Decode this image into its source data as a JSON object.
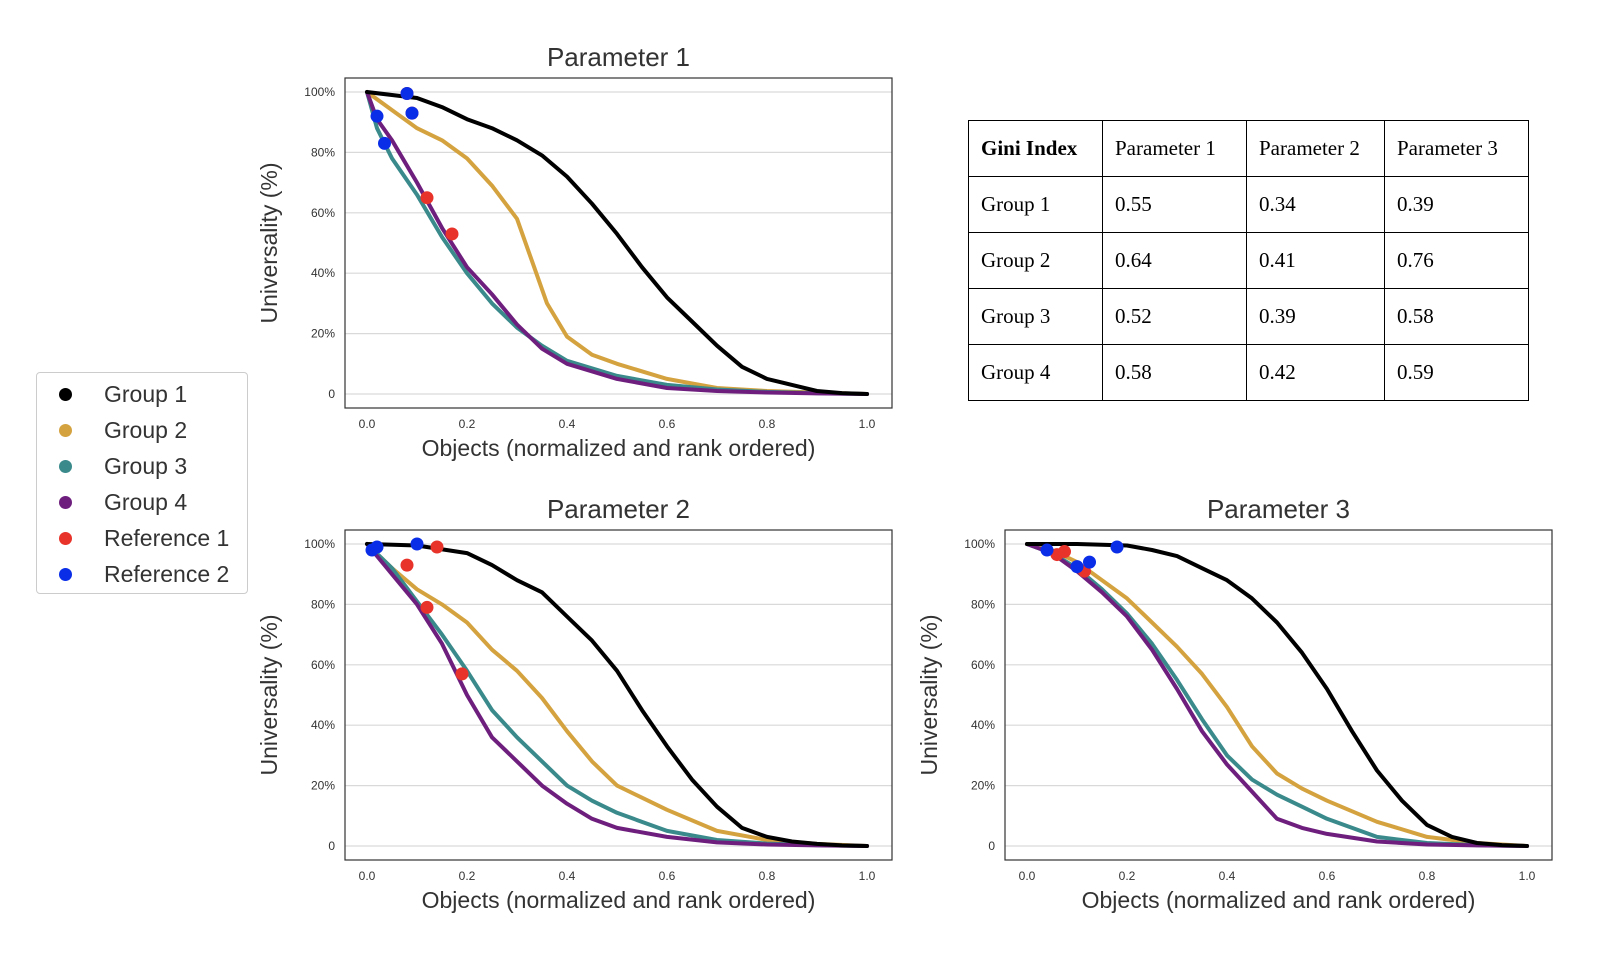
{
  "series_colors": {
    "Group 1": "#000000",
    "Group 2": "#d4a340",
    "Group 3": "#3a8a8c",
    "Group 4": "#6e1f7e",
    "Reference 1": "#e8332a",
    "Reference 2": "#0a2ee8"
  },
  "legend": {
    "items": [
      {
        "label": "Group 1",
        "color": "#000000"
      },
      {
        "label": "Group 2",
        "color": "#d4a340"
      },
      {
        "label": "Group 3",
        "color": "#3a8a8c"
      },
      {
        "label": "Group 4",
        "color": "#6e1f7e"
      },
      {
        "label": "Reference 1",
        "color": "#e8332a"
      },
      {
        "label": "Reference 2",
        "color": "#0a2ee8"
      }
    ]
  },
  "gini_table": {
    "header": [
      "Gini Index",
      "Parameter 1",
      "Parameter 2",
      "Parameter 3"
    ],
    "rows": [
      [
        "Group 1",
        "0.55",
        "0.34",
        "0.39"
      ],
      [
        "Group 2",
        "0.64",
        "0.41",
        "0.76"
      ],
      [
        "Group 3",
        "0.52",
        "0.39",
        "0.58"
      ],
      [
        "Group 4",
        "0.58",
        "0.42",
        "0.59"
      ]
    ]
  },
  "chart_data": [
    {
      "type": "line",
      "title": "Parameter 1",
      "xlabel": "Objects (normalized and rank ordered)",
      "ylabel": "Universality (%)",
      "xlim": [
        0,
        1
      ],
      "ylim": [
        0,
        100
      ],
      "xticks": [
        "0.0",
        "0.2",
        "0.4",
        "0.6",
        "0.8",
        "1.0"
      ],
      "yticks": [
        "0",
        "20%",
        "40%",
        "60%",
        "80%",
        "100%"
      ],
      "grid": "horizontal",
      "series": [
        {
          "name": "Group 1",
          "x": [
            0,
            0.05,
            0.1,
            0.15,
            0.2,
            0.25,
            0.3,
            0.35,
            0.4,
            0.45,
            0.5,
            0.55,
            0.6,
            0.65,
            0.7,
            0.75,
            0.8,
            0.85,
            0.9,
            0.95,
            1.0
          ],
          "y": [
            100,
            99,
            98,
            95,
            91,
            88,
            84,
            79,
            72,
            63,
            53,
            42,
            32,
            24,
            16,
            9,
            5,
            3,
            1,
            0.3,
            0
          ]
        },
        {
          "name": "Group 2",
          "x": [
            0,
            0.05,
            0.1,
            0.15,
            0.2,
            0.25,
            0.3,
            0.33,
            0.36,
            0.4,
            0.45,
            0.5,
            0.6,
            0.7,
            0.8,
            0.9,
            1.0
          ],
          "y": [
            100,
            94,
            88,
            84,
            78,
            69,
            58,
            44,
            30,
            19,
            13,
            10,
            5,
            2,
            1,
            0.5,
            0
          ]
        },
        {
          "name": "Group 3",
          "x": [
            0,
            0.02,
            0.05,
            0.1,
            0.15,
            0.2,
            0.25,
            0.3,
            0.35,
            0.4,
            0.5,
            0.6,
            0.7,
            0.8,
            0.9,
            1.0
          ],
          "y": [
            100,
            88,
            78,
            66,
            52,
            40,
            30,
            22,
            16,
            11,
            6,
            3,
            1.5,
            0.7,
            0.3,
            0
          ]
        },
        {
          "name": "Group 4",
          "x": [
            0,
            0.02,
            0.05,
            0.1,
            0.15,
            0.2,
            0.25,
            0.3,
            0.35,
            0.4,
            0.5,
            0.6,
            0.7,
            0.8,
            0.9,
            1.0
          ],
          "y": [
            100,
            91,
            84,
            70,
            55,
            42,
            33,
            23,
            15,
            10,
            5,
            2,
            1,
            0.5,
            0.2,
            0
          ]
        },
        {
          "name": "Reference 1",
          "mode": "markers",
          "x": [
            0.08,
            0.09,
            0.12,
            0.17
          ],
          "y": [
            99.5,
            93,
            65,
            53
          ]
        },
        {
          "name": "Reference 2",
          "mode": "markers",
          "x": [
            0.08,
            0.09,
            0.02,
            0.035
          ],
          "y": [
            99.5,
            93,
            92,
            83
          ]
        }
      ]
    },
    {
      "type": "line",
      "title": "Parameter 2",
      "xlabel": "Objects (normalized and rank ordered)",
      "ylabel": "Universality (%)",
      "xlim": [
        0,
        1
      ],
      "ylim": [
        0,
        100
      ],
      "xticks": [
        "0.0",
        "0.2",
        "0.4",
        "0.6",
        "0.8",
        "1.0"
      ],
      "yticks": [
        "0",
        "20%",
        "40%",
        "60%",
        "80%",
        "100%"
      ],
      "grid": "horizontal",
      "series": [
        {
          "name": "Group 1",
          "x": [
            0,
            0.1,
            0.2,
            0.25,
            0.3,
            0.35,
            0.4,
            0.45,
            0.5,
            0.55,
            0.6,
            0.65,
            0.7,
            0.75,
            0.8,
            0.85,
            0.9,
            0.95,
            1.0
          ],
          "y": [
            100,
            99.5,
            97,
            93,
            88,
            84,
            76,
            68,
            58,
            45,
            33,
            22,
            13,
            6,
            3,
            1.5,
            0.7,
            0.2,
            0
          ]
        },
        {
          "name": "Group 2",
          "x": [
            0,
            0.05,
            0.1,
            0.15,
            0.2,
            0.25,
            0.3,
            0.35,
            0.4,
            0.45,
            0.5,
            0.55,
            0.6,
            0.7,
            0.8,
            0.9,
            1.0
          ],
          "y": [
            100,
            92,
            85,
            80,
            74,
            65,
            58,
            49,
            38,
            28,
            20,
            16,
            12,
            5,
            2,
            0.7,
            0
          ]
        },
        {
          "name": "Group 3",
          "x": [
            0,
            0.05,
            0.1,
            0.15,
            0.2,
            0.25,
            0.3,
            0.35,
            0.4,
            0.45,
            0.5,
            0.6,
            0.7,
            0.8,
            0.9,
            1.0
          ],
          "y": [
            100,
            92,
            81,
            70,
            58,
            45,
            36,
            28,
            20,
            15,
            11,
            5,
            2,
            0.8,
            0.3,
            0
          ]
        },
        {
          "name": "Group 4",
          "x": [
            0,
            0.05,
            0.1,
            0.15,
            0.2,
            0.25,
            0.3,
            0.35,
            0.4,
            0.45,
            0.5,
            0.6,
            0.7,
            0.8,
            0.9,
            1.0
          ],
          "y": [
            100,
            90,
            80,
            67,
            50,
            36,
            28,
            20,
            14,
            9,
            6,
            3,
            1.2,
            0.5,
            0.2,
            0
          ]
        },
        {
          "name": "Reference 1",
          "mode": "markers",
          "x": [
            0.14,
            0.08,
            0.12,
            0.19
          ],
          "y": [
            99,
            93,
            79,
            57
          ]
        },
        {
          "name": "Reference 2",
          "mode": "markers",
          "x": [
            0.1,
            0.02,
            0.01
          ],
          "y": [
            100,
            99,
            98
          ]
        }
      ]
    },
    {
      "type": "line",
      "title": "Parameter 3",
      "xlabel": "Objects (normalized and rank ordered)",
      "ylabel": "Universality (%)",
      "xlim": [
        0,
        1
      ],
      "ylim": [
        0,
        100
      ],
      "xticks": [
        "0.0",
        "0.2",
        "0.4",
        "0.6",
        "0.8",
        "1.0"
      ],
      "yticks": [
        "0",
        "20%",
        "40%",
        "60%",
        "80%",
        "100%"
      ],
      "grid": "horizontal",
      "series": [
        {
          "name": "Group 1",
          "x": [
            0,
            0.1,
            0.2,
            0.25,
            0.3,
            0.35,
            0.4,
            0.45,
            0.5,
            0.55,
            0.6,
            0.65,
            0.7,
            0.75,
            0.8,
            0.85,
            0.9,
            0.95,
            1.0
          ],
          "y": [
            100,
            100,
            99.5,
            98,
            96,
            92,
            88,
            82,
            74,
            64,
            52,
            38,
            25,
            15,
            7,
            3,
            1,
            0.3,
            0
          ]
        },
        {
          "name": "Group 2",
          "x": [
            0,
            0.05,
            0.1,
            0.15,
            0.2,
            0.25,
            0.3,
            0.35,
            0.4,
            0.45,
            0.5,
            0.55,
            0.6,
            0.7,
            0.8,
            0.9,
            1.0
          ],
          "y": [
            100,
            98,
            94,
            88,
            82,
            74,
            66,
            57,
            46,
            33,
            24,
            19,
            15,
            8,
            3,
            1,
            0
          ]
        },
        {
          "name": "Group 3",
          "x": [
            0,
            0.05,
            0.1,
            0.15,
            0.2,
            0.25,
            0.3,
            0.35,
            0.4,
            0.45,
            0.5,
            0.55,
            0.6,
            0.7,
            0.8,
            0.9,
            1.0
          ],
          "y": [
            100,
            97,
            92,
            85,
            77,
            67,
            55,
            42,
            30,
            22,
            17,
            13,
            9,
            3,
            1,
            0.3,
            0
          ]
        },
        {
          "name": "Group 4",
          "x": [
            0,
            0.05,
            0.1,
            0.15,
            0.2,
            0.25,
            0.3,
            0.35,
            0.4,
            0.45,
            0.5,
            0.55,
            0.6,
            0.7,
            0.8,
            0.9,
            1.0
          ],
          "y": [
            100,
            97,
            91,
            84,
            76,
            65,
            52,
            38,
            27,
            18,
            9,
            6,
            4,
            1.5,
            0.5,
            0.2,
            0
          ]
        },
        {
          "name": "Reference 1",
          "mode": "markers",
          "x": [
            0.06,
            0.075,
            0.115
          ],
          "y": [
            96.5,
            97.5,
            91
          ]
        },
        {
          "name": "Reference 2",
          "mode": "markers",
          "x": [
            0.04,
            0.1,
            0.125,
            0.18
          ],
          "y": [
            98,
            92.5,
            94,
            99
          ]
        }
      ]
    }
  ]
}
